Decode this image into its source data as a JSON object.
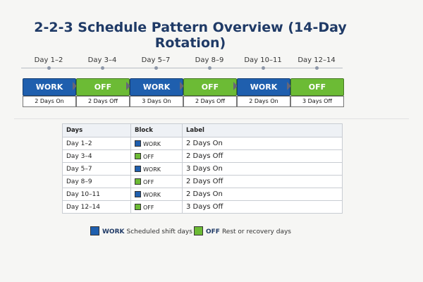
{
  "header": {
    "title": "2-2-3 Schedule Pattern Overview (14-Day Rotation)"
  },
  "timeline": [
    {
      "days": "Day 1–2",
      "block": "WORK",
      "label": "2 Days On"
    },
    {
      "days": "Day 3–4",
      "block": "OFF",
      "label": "2 Days Off"
    },
    {
      "days": "Day 5–7",
      "block": "WORK",
      "label": "3 Days On"
    },
    {
      "days": "Day 8–9",
      "block": "OFF",
      "label": "2 Days Off"
    },
    {
      "days": "Day 10–11",
      "block": "WORK",
      "label": "2 Days On"
    },
    {
      "days": "Day 12–14",
      "block": "OFF",
      "label": "3 Days Off"
    }
  ],
  "table": {
    "columns": [
      "Days",
      "Block",
      "Label"
    ],
    "rows": [
      [
        "Day 1–2",
        "WORK",
        "2 Days On"
      ],
      [
        "Day 3–4",
        "OFF",
        "2 Days Off"
      ],
      [
        "Day 5–7",
        "WORK",
        "3 Days On"
      ],
      [
        "Day 8–9",
        "OFF",
        "2 Days Off"
      ],
      [
        "Day 10–11",
        "WORK",
        "2 Days On"
      ],
      [
        "Day 12–14",
        "OFF",
        "3 Days Off"
      ]
    ]
  },
  "legend": [
    {
      "key": "WORK",
      "text": "Scheduled shift days"
    },
    {
      "key": "OFF",
      "text": "Rest or recovery days"
    }
  ]
}
